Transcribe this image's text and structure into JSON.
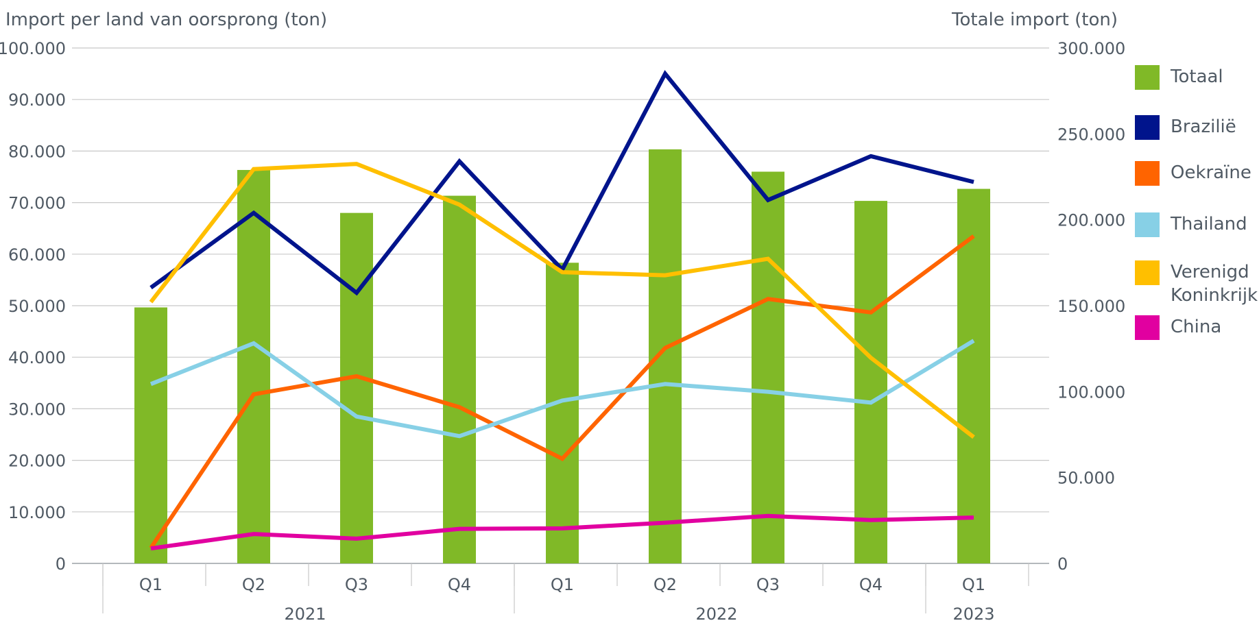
{
  "chart_data": {
    "type": "bar+line",
    "left_axis_title": "Import per land van oorsprong (ton)",
    "right_axis_title": "Totale import (ton)",
    "left_ylim": [
      0,
      100000
    ],
    "right_ylim": [
      0,
      300000
    ],
    "left_ticks": [
      "0",
      "10.000",
      "20.000",
      "30.000",
      "40.000",
      "50.000",
      "60.000",
      "70.000",
      "80.000",
      "90.000",
      "100.000"
    ],
    "right_ticks": [
      "0",
      "50.000",
      "100.000",
      "150.000",
      "200.000",
      "250.000",
      "300.000"
    ],
    "categories": [
      "Q1",
      "Q2",
      "Q3",
      "Q4",
      "Q1",
      "Q2",
      "Q3",
      "Q4",
      "Q1"
    ],
    "year_groups": [
      {
        "label": "2021",
        "span": 4
      },
      {
        "label": "2022",
        "span": 4
      },
      {
        "label": "2023",
        "span": 1
      }
    ],
    "grid": true,
    "legend_position": "right",
    "bars": {
      "name": "Totaal",
      "axis": "right",
      "color": "#80b927",
      "values": [
        149000,
        229000,
        204000,
        214000,
        175000,
        241000,
        228000,
        211000,
        218000
      ]
    },
    "series": [
      {
        "name": "Brazilië",
        "axis": "left",
        "color": "#00148c",
        "values": [
          53500,
          68000,
          52500,
          78000,
          57000,
          95000,
          70500,
          79000,
          74000
        ]
      },
      {
        "name": "Oekraïne",
        "axis": "left",
        "color": "#ff6400",
        "values": [
          3000,
          32800,
          36300,
          30300,
          20300,
          41800,
          51300,
          48700,
          63500
        ]
      },
      {
        "name": "Thailand",
        "axis": "left",
        "color": "#87d0e6",
        "values": [
          34800,
          42700,
          28500,
          24700,
          31600,
          34800,
          33300,
          31200,
          43200
        ]
      },
      {
        "name": "Verenigd Koninkrijk",
        "axis": "left",
        "color": "#ffbf00",
        "values": [
          50700,
          76500,
          77500,
          69600,
          56500,
          55900,
          59100,
          39900,
          24500
        ]
      },
      {
        "name": "China",
        "axis": "left",
        "color": "#e100a0",
        "values": [
          2900,
          5700,
          4800,
          6700,
          6800,
          7900,
          9200,
          8400,
          8900
        ]
      }
    ]
  },
  "legend": [
    {
      "label": "Totaal",
      "color": "#80b927"
    },
    {
      "label": "Brazilië",
      "color": "#00148c"
    },
    {
      "label": "Oekraïne",
      "color": "#ff6400"
    },
    {
      "label": "Thailand",
      "color": "#87d0e6"
    },
    {
      "label": "Verenigd Koninkrijk",
      "color": "#ffbf00"
    },
    {
      "label": "China",
      "color": "#e100a0"
    }
  ]
}
